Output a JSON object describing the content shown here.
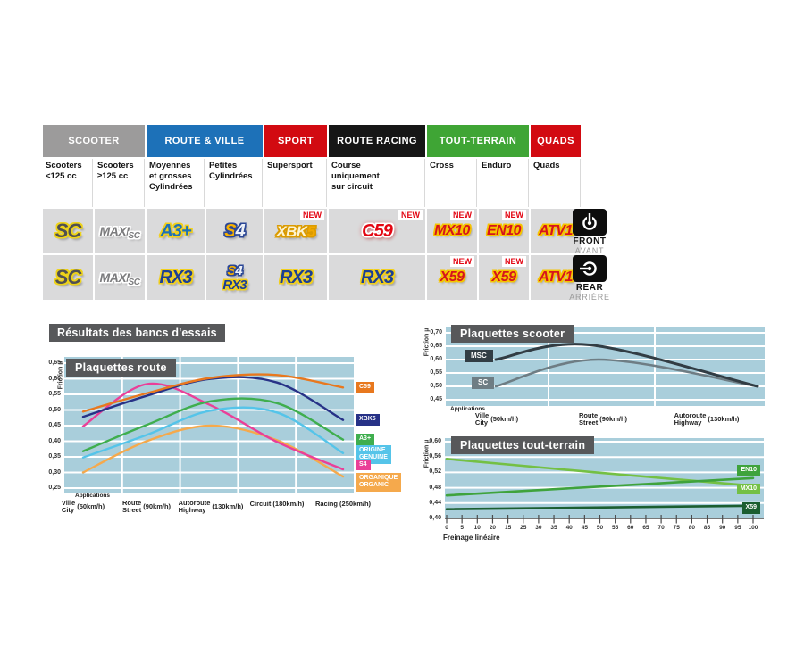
{
  "results_title": "Résultats des bancs d'essais",
  "table": {
    "groups": [
      {
        "label": "SCOOTER",
        "color": "#9c9b9b",
        "span": 2
      },
      {
        "label": "ROUTE & VILLE",
        "color": "#1d71b8",
        "span": 2
      },
      {
        "label": "SPORT",
        "color": "#d20a11",
        "span": 1
      },
      {
        "label": "ROUTE RACING",
        "color": "#161616",
        "span": 1
      },
      {
        "label": "TOUT-TERRAIN",
        "color": "#3fa535",
        "span": 2
      },
      {
        "label": "QUADS",
        "color": "#d20a11",
        "span": 1
      }
    ],
    "sub_headers": [
      [
        "Scooters",
        "<125 cc"
      ],
      [
        "Scooters",
        "≥125 cc"
      ],
      [
        "Moyennes",
        "et grosses",
        "Cylindrées"
      ],
      [
        "Petites",
        "Cylindrées"
      ],
      [
        "Supersport"
      ],
      [
        "Course",
        "uniquement",
        "sur circuit"
      ],
      [
        "Cross"
      ],
      [
        "Enduro"
      ],
      [
        "Quads"
      ]
    ],
    "new_label": "NEW",
    "logo_defs": {
      "SC": {
        "style": "sc",
        "text": "SC"
      },
      "MAXISC": {
        "style": "maxisc",
        "parts": [
          {
            "t": "MAXI",
            "s": "maxi-main"
          },
          {
            "t": "SC",
            "s": "maxi-sub"
          }
        ]
      },
      "A3PLUS": {
        "style": "a3",
        "text": "A3+"
      },
      "S4": {
        "style": "s4",
        "parts": [
          {
            "t": "S",
            "s": "s4-s"
          },
          {
            "t": "4",
            "s": "s4-4"
          }
        ]
      },
      "RX3": {
        "style": "rx3",
        "text": "RX3"
      },
      "XBK5": {
        "style": "xbk5",
        "parts": [
          {
            "t": "XBK",
            "s": "xbk"
          },
          {
            "t": "5",
            "s": "xbk5"
          }
        ]
      },
      "C59": {
        "style": "c59",
        "text": "C59"
      },
      "MX10": {
        "style": "off",
        "text": "MX10"
      },
      "EN10": {
        "style": "off",
        "text": "EN10"
      },
      "ATV1": {
        "style": "off",
        "text": "ATV1"
      },
      "X59": {
        "style": "off",
        "text": "X59"
      }
    },
    "front_row": [
      {
        "logos": [
          "SC"
        ]
      },
      {
        "logos": [
          "MAXISC"
        ]
      },
      {
        "logos": [
          "A3PLUS"
        ]
      },
      {
        "logos": [
          "S4"
        ]
      },
      {
        "logos": [
          "XBK5"
        ],
        "new": true
      },
      {
        "logos": [
          "C59"
        ],
        "new": true
      },
      {
        "logos": [
          "MX10"
        ],
        "new": true
      },
      {
        "logos": [
          "EN10"
        ],
        "new": true
      },
      {
        "logos": [
          "ATV1"
        ]
      }
    ],
    "rear_row": [
      {
        "logos": [
          "SC"
        ]
      },
      {
        "logos": [
          "MAXISC"
        ]
      },
      {
        "logos": [
          "RX3"
        ]
      },
      {
        "logos": [
          "S4",
          "RX3"
        ]
      },
      {
        "logos": [
          "RX3"
        ]
      },
      {
        "logos": [
          "RX3"
        ]
      },
      {
        "logos": [
          "X59"
        ],
        "new": true
      },
      {
        "logos": [
          "X59"
        ],
        "new": true
      },
      {
        "logos": [
          "ATV1"
        ]
      }
    ],
    "side": {
      "front": {
        "label": "FRONT",
        "sub": "AVANT"
      },
      "rear": {
        "label": "REAR",
        "sub": "ARRIÈRE"
      }
    }
  },
  "chart_data": [
    {
      "type": "line",
      "title": "Plaquettes route",
      "ylabel": "Friction µ",
      "ylim": [
        0.25,
        0.65
      ],
      "yticks": [
        "0,65",
        "0,60",
        "0,55",
        "0,50",
        "0,45",
        "0,40",
        "0,35",
        "0,30",
        "0,25"
      ],
      "x_heading": "Applications",
      "categories": [
        {
          "fr": "Ville",
          "en": "City",
          "speed": "(50km/h)"
        },
        {
          "fr": "Route",
          "en": "Street",
          "speed": "(90km/h)"
        },
        {
          "fr": "Autoroute",
          "en": "Highway",
          "speed": "(130km/h)"
        },
        {
          "fr": "Circuit",
          "en": "",
          "speed": "(180km/h)"
        },
        {
          "fr": "Racing",
          "en": "",
          "speed": "(250km/h)"
        }
      ],
      "legend_position": "right",
      "grid": true,
      "series": [
        {
          "name": "C59",
          "legend": [
            "C59"
          ],
          "color": "#e8781e",
          "values": [
            0.495,
            0.553,
            0.603,
            0.612,
            0.572
          ]
        },
        {
          "name": "XBK5",
          "legend": [
            "XBK5"
          ],
          "color": "#273287",
          "values": [
            0.478,
            0.545,
            0.6,
            0.588,
            0.468
          ]
        },
        {
          "name": "A3+",
          "legend": [
            "A3+"
          ],
          "color": "#3fae4e",
          "values": [
            0.368,
            0.452,
            0.528,
            0.522,
            0.405
          ]
        },
        {
          "name": "ORIGINE",
          "legend": [
            "ORIGINE",
            "GENUINE"
          ],
          "color": "#55c4e9",
          "values": [
            0.348,
            0.42,
            0.498,
            0.492,
            0.362
          ]
        },
        {
          "name": "S4",
          "legend": [
            "S4"
          ],
          "color": "#ea3f98",
          "values": [
            0.448,
            0.583,
            0.515,
            0.398,
            0.31
          ]
        },
        {
          "name": "ORGANIQUE",
          "legend": [
            "ORGANIQUE",
            "ORGANIC"
          ],
          "color": "#f5a94c",
          "values": [
            0.3,
            0.4,
            0.45,
            0.403,
            0.287
          ]
        }
      ]
    },
    {
      "type": "line",
      "title": "Plaquettes scooter",
      "ylabel": "Friction µ",
      "ylim": [
        0.45,
        0.7
      ],
      "yticks": [
        "0,70",
        "0,65",
        "0,60",
        "0,55",
        "0,50",
        "0,45"
      ],
      "x_heading": "Applications",
      "categories": [
        {
          "fr": "Ville",
          "en": "City",
          "speed": "(50km/h)"
        },
        {
          "fr": "Route",
          "en": "Street",
          "speed": "(90km/h)"
        },
        {
          "fr": "Autoroute",
          "en": "Highway",
          "speed": "(130km/h)"
        }
      ],
      "legend_position": "on-plot-left",
      "grid": true,
      "series": [
        {
          "name": "MSC",
          "legend": [
            "MSC"
          ],
          "color": "#323d44",
          "values": [
            0.6,
            0.655,
            0.5
          ]
        },
        {
          "name": "SC",
          "legend": [
            "SC"
          ],
          "color": "#6e7d84",
          "values": [
            0.5,
            0.6,
            0.5
          ]
        }
      ]
    },
    {
      "type": "line",
      "title": "Plaquettes tout-terrain",
      "ylabel": "Friction µ",
      "ylim": [
        0.4,
        0.6
      ],
      "yticks": [
        "0,60",
        "0,56",
        "0,52",
        "0,48",
        "0,44",
        "0,40"
      ],
      "xticks": [
        "0",
        "5",
        "10",
        "20",
        "15",
        "25",
        "30",
        "35",
        "40",
        "45",
        "50",
        "55",
        "60",
        "65",
        "70",
        "75",
        "80",
        "85",
        "90",
        "95",
        "100"
      ],
      "xlabel": "Freinage linéaire",
      "legend_position": "right",
      "grid": true,
      "series": [
        {
          "name": "EN10",
          "legend": [
            "EN10"
          ],
          "color": "#3fa33c",
          "x": [
            0,
            50,
            100
          ],
          "values": [
            0.46,
            0.483,
            0.505
          ]
        },
        {
          "name": "MX10",
          "legend": [
            "MX10"
          ],
          "color": "#74c044",
          "x": [
            0,
            50,
            100
          ],
          "values": [
            0.555,
            0.519,
            0.485
          ]
        },
        {
          "name": "X59",
          "legend": [
            "X59"
          ],
          "color": "#1b5e30",
          "x": [
            0,
            100
          ],
          "values": [
            0.424,
            0.433
          ]
        }
      ]
    }
  ]
}
